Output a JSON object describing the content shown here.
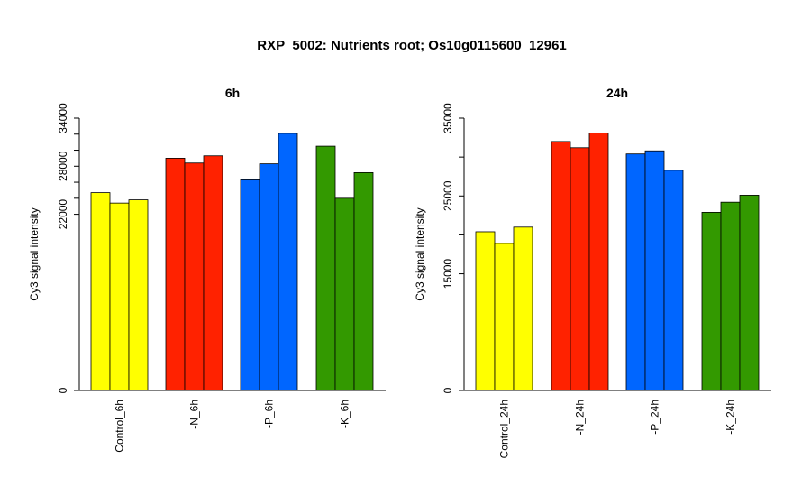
{
  "title": "RXP_5002: Nutrients root; Os10g0115600_12961",
  "chart_data": [
    {
      "type": "bar",
      "title": "6h",
      "ylabel": "Cy3 signal intensity",
      "xlabel": "",
      "ylim": [
        0,
        34000
      ],
      "yticks": [
        0,
        22000,
        28000,
        34000
      ],
      "ytick_labels": [
        "0",
        "22000",
        "28000",
        "34000"
      ],
      "ytick_minor": [
        24000,
        26000,
        30000,
        32000
      ],
      "categories": [
        "Control_6h",
        "-N_6h",
        "-P_6h",
        "-K_6h"
      ],
      "colors": [
        "#ffff00",
        "#ff2200",
        "#0066ff",
        "#339900"
      ],
      "groups": [
        [
          24700,
          23400,
          23800
        ],
        [
          29000,
          28400,
          29300
        ],
        [
          26300,
          28300,
          32100
        ],
        [
          30500,
          24000,
          27200
        ]
      ]
    },
    {
      "type": "bar",
      "title": "24h",
      "ylabel": "Cy3 signal intensity",
      "xlabel": "",
      "ylim": [
        0,
        35000
      ],
      "yticks": [
        0,
        15000,
        25000,
        35000
      ],
      "ytick_labels": [
        "0",
        "15000",
        "25000",
        "35000"
      ],
      "ytick_minor": [
        20000,
        30000
      ],
      "categories": [
        "Control_24h",
        "-N_24h",
        "-P_24h",
        "-K_24h"
      ],
      "colors": [
        "#ffff00",
        "#ff2200",
        "#0066ff",
        "#339900"
      ],
      "groups": [
        [
          20400,
          18900,
          21000
        ],
        [
          32000,
          31200,
          33100
        ],
        [
          30400,
          30800,
          28300
        ],
        [
          22900,
          24200,
          25100
        ]
      ]
    }
  ]
}
